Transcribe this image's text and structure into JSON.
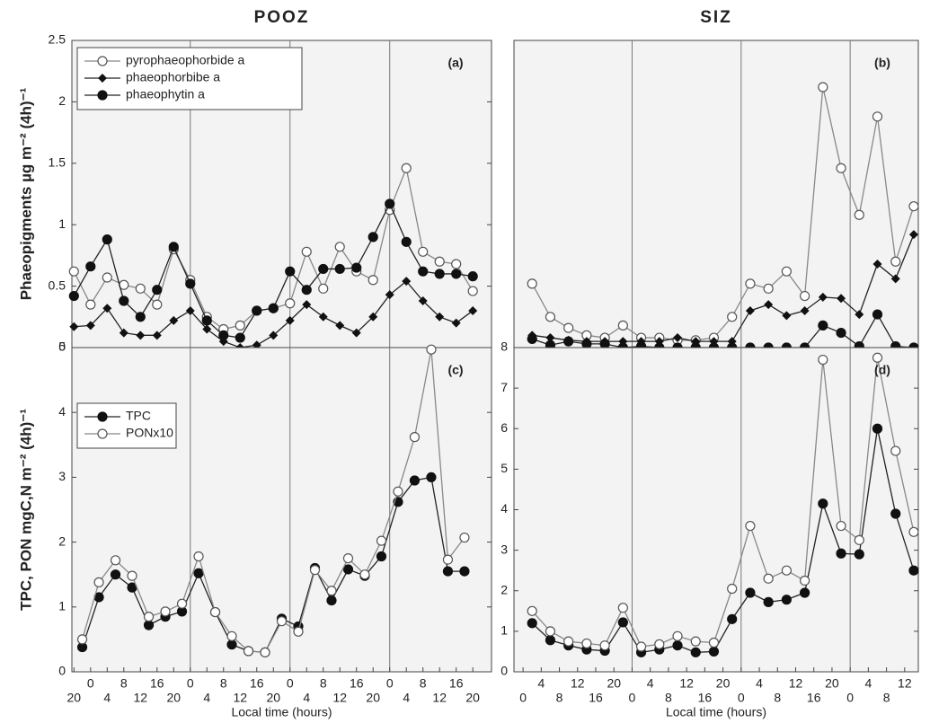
{
  "chart_data": [
    {
      "type": "line",
      "title": "POOZ",
      "ylabel": "Phaeopigments µg m⁻² (4h)⁻¹",
      "annotation": "(a)",
      "legend": "upper left",
      "x": [
        -4,
        0,
        4,
        8,
        12,
        16,
        20,
        24,
        28,
        32,
        36,
        40,
        44,
        48,
        52,
        56,
        60,
        64,
        68,
        72,
        76,
        80,
        84,
        88,
        92
      ],
      "xlim": [
        -4.5,
        96.5
      ],
      "ylim": [
        0,
        2.5
      ],
      "yticks": [
        0,
        0.5,
        1,
        1.5,
        2,
        2.5
      ],
      "vlines": [
        24,
        48,
        72
      ],
      "series": [
        {
          "name": "pyrophaeophorbide a",
          "color": "#888888",
          "marker": "open-circle",
          "values": [
            0.62,
            0.35,
            0.57,
            0.51,
            0.48,
            0.35,
            0.8,
            0.55,
            0.25,
            0.15,
            0.18,
            0.3,
            0.32,
            0.36,
            0.78,
            0.48,
            0.82,
            0.62,
            0.55,
            1.12,
            1.46,
            0.78,
            0.7,
            0.68,
            0.46
          ]
        },
        {
          "name": "phaeophorbibe a",
          "color": "#222222",
          "marker": "diamond",
          "values": [
            0.17,
            0.18,
            0.32,
            0.12,
            0.1,
            0.1,
            0.22,
            0.3,
            0.15,
            0.05,
            0,
            0.02,
            0.1,
            0.22,
            0.35,
            0.25,
            0.18,
            0.12,
            0.25,
            0.43,
            0.54,
            0.38,
            0.25,
            0.2,
            0.3
          ]
        },
        {
          "name": "phaeophytin a",
          "color": "#222222",
          "marker": "filled-circle",
          "values": [
            0.42,
            0.66,
            0.88,
            0.38,
            0.25,
            0.47,
            0.82,
            0.52,
            0.22,
            0.1,
            0.08,
            0.3,
            0.32,
            0.62,
            0.47,
            0.64,
            0.64,
            0.65,
            0.9,
            1.17,
            0.86,
            0.62,
            0.6,
            0.6,
            0.58
          ]
        }
      ]
    },
    {
      "type": "line",
      "title": "SIZ",
      "annotation": "(b)",
      "x": [
        2,
        6,
        10,
        14,
        18,
        22,
        26,
        30,
        34,
        38,
        42,
        46,
        50,
        54,
        58,
        62,
        66,
        70,
        74,
        78,
        82,
        86
      ],
      "xlim": [
        -2,
        87
      ],
      "ylim": [
        0,
        2.5
      ],
      "vlines": [
        24,
        48,
        72
      ],
      "series": [
        {
          "color": "#888888",
          "marker": "open-circle",
          "values": [
            0.52,
            0.25,
            0.16,
            0.1,
            0.08,
            0.18,
            0.08,
            0.08,
            0.06,
            0.06,
            0.08,
            0.25,
            0.52,
            0.48,
            0.62,
            0.42,
            2.12,
            1.46,
            1.08,
            1.88,
            0.7,
            1.15
          ]
        },
        {
          "color": "#222222",
          "marker": "diamond",
          "values": [
            0.1,
            0.08,
            0.06,
            0.05,
            0.05,
            0.05,
            0.05,
            0.05,
            0.08,
            0.05,
            0.05,
            0.05,
            0.3,
            0.35,
            0.26,
            0.3,
            0.41,
            0.4,
            0.27,
            0.68,
            0.56,
            0.92
          ]
        },
        {
          "color": "#222222",
          "marker": "filled-circle",
          "values": [
            0.07,
            0.02,
            0.05,
            0.03,
            0.03,
            0,
            0.01,
            0,
            0,
            0,
            0,
            0,
            0,
            0,
            0,
            0,
            0.18,
            0.12,
            0.01,
            0.27,
            0.01,
            0
          ]
        }
      ]
    },
    {
      "type": "line",
      "ylabel": "TPC, PON  mgC,N m⁻² (4h)⁻¹",
      "xlabel": "Local time (hours)",
      "annotation": "(c)",
      "legend": "upper left",
      "x": [
        -2,
        2,
        6,
        10,
        14,
        18,
        22,
        26,
        30,
        34,
        38,
        42,
        46,
        50,
        54,
        58,
        62,
        66,
        70,
        74,
        78,
        82,
        86,
        90
      ],
      "xlim": [
        -4.5,
        96.5
      ],
      "ylim": [
        0,
        5
      ],
      "yticks": [
        0,
        1,
        2,
        3,
        4,
        5
      ],
      "vlines": [
        24,
        48,
        72
      ],
      "xticks": [
        {
          "value": -4,
          "label": "20"
        },
        {
          "value": 0,
          "label": "0"
        },
        {
          "value": 4,
          "label": "4"
        },
        {
          "value": 8,
          "label": "8"
        },
        {
          "value": 12,
          "label": "12"
        },
        {
          "value": 16,
          "label": "16"
        },
        {
          "value": 20,
          "label": "20"
        },
        {
          "value": 24,
          "label": "0"
        },
        {
          "value": 28,
          "label": "4"
        },
        {
          "value": 32,
          "label": "8"
        },
        {
          "value": 36,
          "label": "12"
        },
        {
          "value": 40,
          "label": "16"
        },
        {
          "value": 44,
          "label": "20"
        },
        {
          "value": 48,
          "label": "0"
        },
        {
          "value": 52,
          "label": "4"
        },
        {
          "value": 56,
          "label": "8"
        },
        {
          "value": 60,
          "label": "12"
        },
        {
          "value": 64,
          "label": "16"
        },
        {
          "value": 68,
          "label": "20"
        },
        {
          "value": 72,
          "label": "0"
        },
        {
          "value": 76,
          "label": "4"
        },
        {
          "value": 80,
          "label": "8"
        },
        {
          "value": 84,
          "label": "12"
        },
        {
          "value": 88,
          "label": "16"
        },
        {
          "value": 92,
          "label": "20"
        }
      ],
      "series": [
        {
          "name": "TPC",
          "color": "#222222",
          "marker": "filled-circle",
          "values": [
            0.38,
            1.15,
            1.5,
            1.3,
            0.72,
            0.85,
            0.93,
            1.52,
            0.92,
            0.42,
            0.32,
            0.3,
            0.82,
            0.7,
            1.6,
            1.1,
            1.58,
            1.48,
            1.78,
            2.62,
            2.95,
            3.0,
            1.55,
            1.55
          ]
        },
        {
          "name": "PONx10",
          "color": "#888888",
          "marker": "open-circle",
          "values": [
            0.5,
            1.38,
            1.72,
            1.48,
            0.85,
            0.93,
            1.05,
            1.78,
            0.92,
            0.55,
            0.32,
            0.3,
            0.78,
            0.62,
            1.57,
            1.25,
            1.75,
            1.5,
            2.02,
            2.78,
            3.62,
            4.97,
            1.73,
            2.07
          ]
        }
      ]
    },
    {
      "type": "line",
      "xlabel": "Local time (hours)",
      "annotation": "(d)",
      "x": [
        2,
        6,
        10,
        14,
        18,
        22,
        26,
        30,
        34,
        38,
        42,
        46,
        50,
        54,
        58,
        62,
        66,
        70,
        74,
        78,
        82,
        86
      ],
      "xlim": [
        -2,
        87
      ],
      "ylim": [
        0,
        8
      ],
      "yticks": [
        0,
        1,
        2,
        3,
        4,
        5,
        6,
        7,
        8
      ],
      "vlines": [
        24,
        48,
        72
      ],
      "xticks": [
        {
          "value": 0,
          "label": "0"
        },
        {
          "value": 4,
          "label": "4"
        },
        {
          "value": 8,
          "label": "8"
        },
        {
          "value": 12,
          "label": "12"
        },
        {
          "value": 16,
          "label": "16"
        },
        {
          "value": 20,
          "label": "20"
        },
        {
          "value": 24,
          "label": "0"
        },
        {
          "value": 28,
          "label": "4"
        },
        {
          "value": 32,
          "label": "8"
        },
        {
          "value": 36,
          "label": "12"
        },
        {
          "value": 40,
          "label": "16"
        },
        {
          "value": 44,
          "label": "20"
        },
        {
          "value": 48,
          "label": "0"
        },
        {
          "value": 52,
          "label": "4"
        },
        {
          "value": 56,
          "label": "8"
        },
        {
          "value": 60,
          "label": "12"
        },
        {
          "value": 64,
          "label": "16"
        },
        {
          "value": 68,
          "label": "20"
        },
        {
          "value": 72,
          "label": "0"
        },
        {
          "value": 76,
          "label": "4"
        },
        {
          "value": 80,
          "label": "8"
        },
        {
          "value": 84,
          "label": "12"
        }
      ],
      "series": [
        {
          "color": "#222222",
          "marker": "filled-circle",
          "values": [
            1.2,
            0.78,
            0.65,
            0.55,
            0.52,
            1.22,
            0.48,
            0.55,
            0.65,
            0.48,
            0.5,
            1.3,
            1.95,
            1.72,
            1.78,
            1.95,
            4.15,
            2.92,
            2.9,
            6.0,
            3.9,
            2.5
          ]
        },
        {
          "color": "#888888",
          "marker": "open-circle",
          "values": [
            1.5,
            1.0,
            0.75,
            0.7,
            0.65,
            1.58,
            0.62,
            0.68,
            0.88,
            0.75,
            0.72,
            2.05,
            3.6,
            2.3,
            2.5,
            2.25,
            7.7,
            3.6,
            3.25,
            7.75,
            5.45,
            3.45
          ]
        }
      ]
    }
  ]
}
